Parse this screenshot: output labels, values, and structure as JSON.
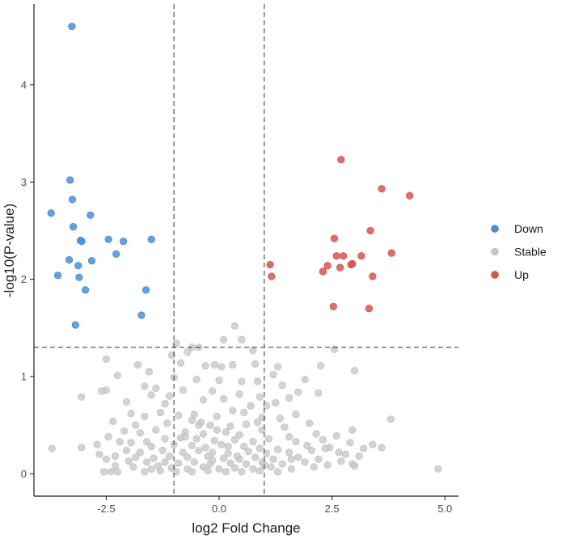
{
  "chart_data": {
    "type": "scatter",
    "title": "",
    "xlabel": "log2 Fold Change",
    "ylabel": "-log10(P-value)",
    "xlim": [
      -4.1,
      5.3
    ],
    "ylim": [
      -0.23,
      4.83
    ],
    "x_ticks": [
      -2.5,
      0.0,
      2.5,
      5.0
    ],
    "x_tick_labels": [
      "-2.5",
      "0.0",
      "2.5",
      "5.0"
    ],
    "y_ticks": [
      0,
      1,
      2,
      3,
      4
    ],
    "y_tick_labels": [
      "0",
      "1",
      "2",
      "3",
      "4"
    ],
    "grid": false,
    "legend_position": "right",
    "thresholds": {
      "vertical": [
        -1,
        1
      ],
      "horizontal": [
        1.3
      ]
    },
    "series": [
      {
        "name": "Down",
        "color": "#4a90d9",
        "points": [
          [
            -3.26,
            4.6
          ],
          [
            -3.3,
            3.02
          ],
          [
            -3.25,
            2.82
          ],
          [
            -3.72,
            2.68
          ],
          [
            -2.85,
            2.66
          ],
          [
            -3.23,
            2.54
          ],
          [
            -3.07,
            2.4
          ],
          [
            -3.04,
            2.39
          ],
          [
            -2.45,
            2.41
          ],
          [
            -2.12,
            2.39
          ],
          [
            -1.5,
            2.41
          ],
          [
            -2.28,
            2.26
          ],
          [
            -3.32,
            2.2
          ],
          [
            -2.82,
            2.19
          ],
          [
            -3.12,
            2.14
          ],
          [
            -3.57,
            2.04
          ],
          [
            -3.1,
            2.02
          ],
          [
            -2.96,
            1.89
          ],
          [
            -1.62,
            1.89
          ],
          [
            -1.72,
            1.63
          ],
          [
            -3.18,
            1.53
          ]
        ]
      },
      {
        "name": "Stable",
        "color": "#c8c8c8",
        "points": [
          [
            -0.95,
            1.34
          ],
          [
            0.35,
            1.52
          ],
          [
            -0.6,
            1.3
          ],
          [
            0.1,
            1.38
          ],
          [
            0.5,
            1.38
          ],
          [
            0.75,
            1.27
          ],
          [
            -1.05,
            1.22
          ],
          [
            -0.7,
            1.25
          ],
          [
            -0.45,
            1.3
          ],
          [
            -2.5,
            1.18
          ],
          [
            -1.8,
            1.12
          ],
          [
            -0.85,
            1.14
          ],
          [
            -0.3,
            1.11
          ],
          [
            -0.1,
            1.12
          ],
          [
            0.05,
            1.1
          ],
          [
            0.3,
            1.12
          ],
          [
            0.8,
            1.13
          ],
          [
            2.25,
            1.11
          ],
          [
            1.3,
            1.1
          ],
          [
            -1.55,
            1.05
          ],
          [
            -2.25,
            1.01
          ],
          [
            -1.0,
            0.99
          ],
          [
            -0.5,
            0.97
          ],
          [
            0.0,
            0.96
          ],
          [
            0.5,
            0.95
          ],
          [
            0.85,
            0.95
          ],
          [
            1.2,
            1.02
          ],
          [
            2.55,
            1.28
          ],
          [
            3.0,
            1.06
          ],
          [
            1.9,
            0.97
          ],
          [
            1.4,
            0.91
          ],
          [
            -2.5,
            0.86
          ],
          [
            -2.6,
            0.85
          ],
          [
            -1.65,
            0.9
          ],
          [
            -1.4,
            0.88
          ],
          [
            -0.8,
            0.86
          ],
          [
            -0.15,
            0.85
          ],
          [
            0.45,
            0.82
          ],
          [
            1.75,
            0.84
          ],
          [
            1.55,
            0.78
          ],
          [
            2.2,
            0.83
          ],
          [
            -3.05,
            0.79
          ],
          [
            -2.05,
            0.74
          ],
          [
            -1.5,
            0.81
          ],
          [
            -1.1,
            0.8
          ],
          [
            -0.35,
            0.76
          ],
          [
            0.1,
            0.77
          ],
          [
            0.9,
            0.79
          ],
          [
            1.25,
            0.73
          ],
          [
            1.05,
            0.7
          ],
          [
            -1.95,
            0.62
          ],
          [
            -1.65,
            0.59
          ],
          [
            -1.3,
            0.63
          ],
          [
            -0.9,
            0.6
          ],
          [
            -0.55,
            0.61
          ],
          [
            -0.05,
            0.59
          ],
          [
            0.55,
            0.63
          ],
          [
            0.95,
            0.58
          ],
          [
            1.7,
            0.61
          ],
          [
            3.8,
            0.56
          ],
          [
            -2.35,
            0.54
          ],
          [
            -1.85,
            0.5
          ],
          [
            -1.15,
            0.52
          ],
          [
            -0.6,
            0.55
          ],
          [
            -0.4,
            0.53
          ],
          [
            -0.2,
            0.5
          ],
          [
            0.25,
            0.49
          ],
          [
            0.6,
            0.51
          ],
          [
            0.85,
            0.53
          ],
          [
            1.45,
            0.48
          ],
          [
            2.0,
            0.52
          ],
          [
            2.95,
            0.45
          ],
          [
            -2.1,
            0.44
          ],
          [
            -1.75,
            0.42
          ],
          [
            -1.4,
            0.45
          ],
          [
            -0.75,
            0.43
          ],
          [
            -0.35,
            0.41
          ],
          [
            0.15,
            0.43
          ],
          [
            0.45,
            0.4
          ],
          [
            0.95,
            0.45
          ],
          [
            1.55,
            0.38
          ],
          [
            2.15,
            0.41
          ],
          [
            2.6,
            0.39
          ],
          [
            -2.45,
            0.38
          ],
          [
            -1.6,
            0.33
          ],
          [
            -1.2,
            0.36
          ],
          [
            -0.85,
            0.37
          ],
          [
            -0.5,
            0.36
          ],
          [
            -0.1,
            0.34
          ],
          [
            0.35,
            0.35
          ],
          [
            0.75,
            0.33
          ],
          [
            1.1,
            0.36
          ],
          [
            1.7,
            0.33
          ],
          [
            2.3,
            0.35
          ],
          [
            2.9,
            0.32
          ],
          [
            3.4,
            0.3
          ],
          [
            -2.2,
            0.33
          ],
          [
            -1.95,
            0.32
          ],
          [
            -1.5,
            0.28
          ],
          [
            -1.0,
            0.3
          ],
          [
            -0.6,
            0.29
          ],
          [
            -0.3,
            0.27
          ],
          [
            0.05,
            0.3
          ],
          [
            0.55,
            0.28
          ],
          [
            0.9,
            0.26
          ],
          [
            1.3,
            0.25
          ],
          [
            1.95,
            0.29
          ],
          [
            2.45,
            0.27
          ],
          [
            3.2,
            0.26
          ],
          [
            3.6,
            0.27
          ],
          [
            -3.7,
            0.26
          ],
          [
            -3.05,
            0.27
          ],
          [
            -2.05,
            0.24
          ],
          [
            -1.75,
            0.22
          ],
          [
            -1.25,
            0.24
          ],
          [
            -0.8,
            0.22
          ],
          [
            -0.45,
            0.24
          ],
          [
            -0.15,
            0.22
          ],
          [
            0.2,
            0.21
          ],
          [
            0.65,
            0.23
          ],
          [
            1.05,
            0.21
          ],
          [
            1.55,
            0.22
          ],
          [
            2.05,
            0.24
          ],
          [
            2.35,
            0.26
          ],
          [
            2.8,
            0.2
          ],
          [
            -2.65,
            0.2
          ],
          [
            -2.3,
            0.18
          ],
          [
            -1.85,
            0.17
          ],
          [
            -1.45,
            0.16
          ],
          [
            -1.1,
            0.18
          ],
          [
            -0.7,
            0.17
          ],
          [
            -0.25,
            0.18
          ],
          [
            0.1,
            0.16
          ],
          [
            0.45,
            0.15
          ],
          [
            0.8,
            0.17
          ],
          [
            1.2,
            0.15
          ],
          [
            1.75,
            0.17
          ],
          [
            2.2,
            0.15
          ],
          [
            2.7,
            0.13
          ],
          [
            3.1,
            0.18
          ],
          [
            -2.5,
            0.15
          ],
          [
            -2.0,
            0.13
          ],
          [
            -1.6,
            0.12
          ],
          [
            -1.2,
            0.12
          ],
          [
            -0.9,
            0.11
          ],
          [
            -0.55,
            0.12
          ],
          [
            -0.2,
            0.1
          ],
          [
            0.25,
            0.11
          ],
          [
            0.6,
            0.1
          ],
          [
            0.95,
            0.12
          ],
          [
            1.4,
            0.1
          ],
          [
            1.9,
            0.12
          ],
          [
            2.4,
            0.09
          ],
          [
            2.95,
            0.1
          ],
          [
            -2.3,
            0.08
          ],
          [
            -1.9,
            0.07
          ],
          [
            -1.5,
            0.05
          ],
          [
            -1.05,
            0.06
          ],
          [
            -0.7,
            0.05
          ],
          [
            -0.35,
            0.07
          ],
          [
            0.0,
            0.05
          ],
          [
            0.35,
            0.06
          ],
          [
            0.75,
            0.05
          ],
          [
            1.15,
            0.07
          ],
          [
            1.6,
            0.05
          ],
          [
            2.1,
            0.07
          ],
          [
            -2.55,
            0.02
          ],
          [
            -2.4,
            0.02
          ],
          [
            -2.25,
            0.02
          ],
          [
            -1.65,
            0.02
          ],
          [
            -1.3,
            0.03
          ],
          [
            -0.95,
            0.02
          ],
          [
            -0.6,
            0.02
          ],
          [
            -0.25,
            0.03
          ],
          [
            0.15,
            0.02
          ],
          [
            0.5,
            0.02
          ],
          [
            0.9,
            0.03
          ],
          [
            1.3,
            0.02
          ],
          [
            4.85,
            0.05
          ],
          [
            3.0,
            0.08
          ],
          [
            -0.45,
            0.5
          ],
          [
            0.7,
            0.7
          ],
          [
            -1.2,
            0.72
          ],
          [
            0.3,
            0.65
          ],
          [
            -0.05,
            0.45
          ],
          [
            1.35,
            0.57
          ],
          [
            -2.7,
            0.3
          ],
          [
            2.65,
            0.22
          ],
          [
            -0.75,
            0.38
          ],
          [
            0.2,
            0.28
          ],
          [
            1.6,
            0.15
          ],
          [
            -1.35,
            0.08
          ],
          [
            -0.15,
            0.14
          ],
          [
            0.4,
            0.18
          ],
          [
            1.0,
            0.09
          ]
        ]
      },
      {
        "name": "Up",
        "color": "#d9534f",
        "points": [
          [
            2.7,
            3.23
          ],
          [
            3.6,
            2.93
          ],
          [
            4.22,
            2.86
          ],
          [
            3.35,
            2.5
          ],
          [
            2.55,
            2.42
          ],
          [
            3.82,
            2.27
          ],
          [
            2.6,
            2.24
          ],
          [
            2.75,
            2.24
          ],
          [
            3.15,
            2.24
          ],
          [
            2.95,
            2.16
          ],
          [
            2.92,
            2.15
          ],
          [
            2.4,
            2.14
          ],
          [
            2.68,
            2.12
          ],
          [
            1.13,
            2.15
          ],
          [
            2.3,
            2.08
          ],
          [
            1.16,
            2.03
          ],
          [
            3.4,
            2.03
          ],
          [
            2.53,
            1.72
          ],
          [
            3.32,
            1.7
          ]
        ]
      }
    ]
  }
}
